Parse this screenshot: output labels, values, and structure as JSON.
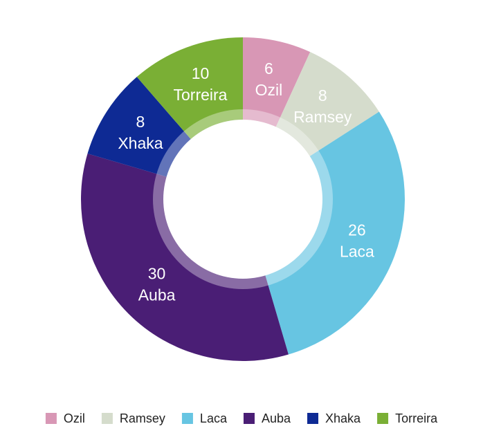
{
  "chart_data": {
    "type": "donut",
    "categories": [
      "Ozil",
      "Ramsey",
      "Laca",
      "Auba",
      "Xhaka",
      "Torreira"
    ],
    "values": [
      6,
      8,
      26,
      30,
      8,
      10
    ],
    "colors": [
      "#d897b5",
      "#d5dccc",
      "#67c5e2",
      "#4a1e75",
      "#0e2a94",
      "#7aaf35"
    ],
    "legend": "bottom"
  }
}
